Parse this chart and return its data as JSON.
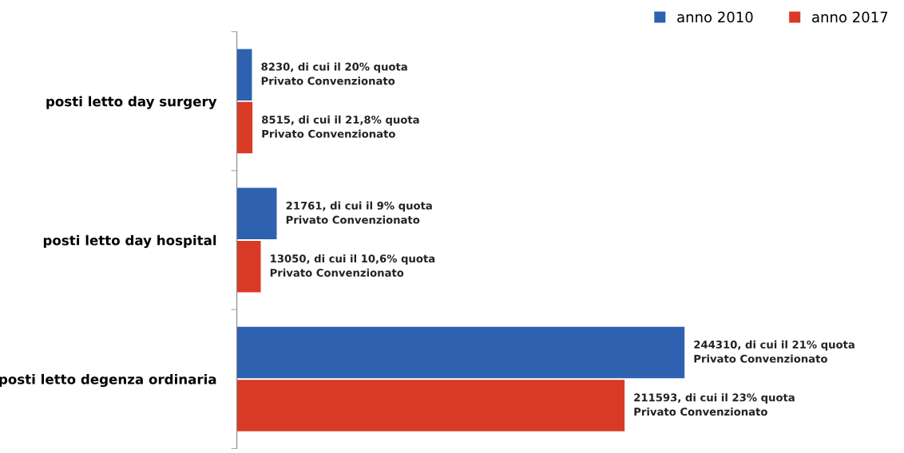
{
  "chart_data": {
    "type": "bar",
    "orientation": "horizontal",
    "categories": [
      "posti letto day surgery",
      "posti letto day hospital",
      "posti letto degenza ordinaria"
    ],
    "series": [
      {
        "name": "anno 2010",
        "color": "#2e62b0",
        "values": [
          8230,
          21761,
          244310
        ],
        "value_labels": [
          "8230, di cui il 20% quota\nPrivato Convenzionato",
          "21761, di cui il 9% quota\nPrivato Convenzionato",
          "244310, di cui il 21% quota\nPrivato Convenzionato"
        ]
      },
      {
        "name": "anno 2017",
        "color": "#d93a26",
        "values": [
          8515,
          13050,
          211593
        ],
        "value_labels": [
          "8515, di cui il 21,8% quota\nPrivato Convenzionato",
          "13050, di cui il 10,6% quota\nPrivato Convenzionato",
          "211593, di cui il 23% quota\nPrivato Convenzionato"
        ]
      }
    ],
    "tick_labels": "y",
    "grid": false,
    "legend": "top right"
  }
}
